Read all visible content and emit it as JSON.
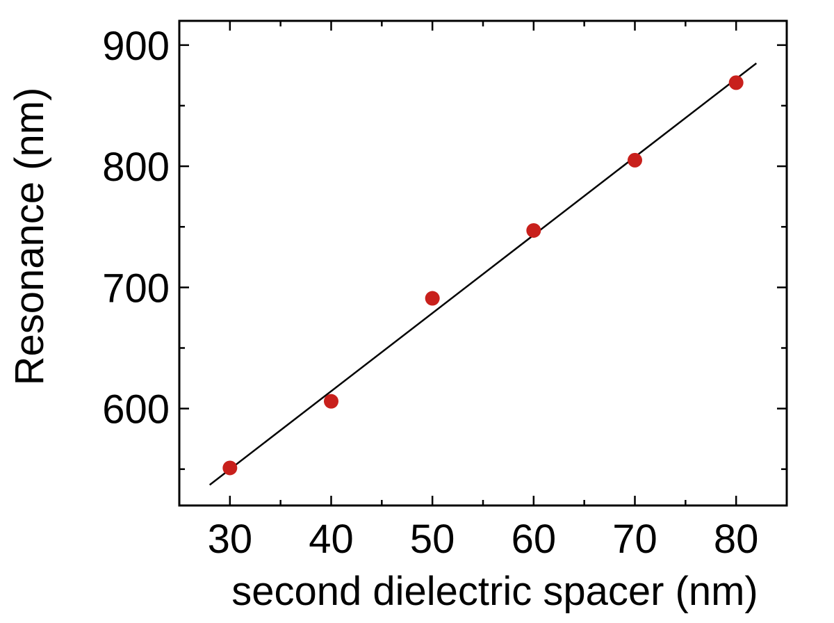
{
  "chart_data": {
    "type": "scatter",
    "title": "",
    "xlabel": "second dielectric spacer (nm)",
    "ylabel": "Resonance (nm)",
    "xlim": [
      25,
      85
    ],
    "ylim": [
      520,
      920
    ],
    "x_ticks": [
      30,
      40,
      50,
      60,
      70,
      80
    ],
    "y_ticks": [
      600,
      700,
      800,
      900
    ],
    "x_minor_ticks": [
      35,
      45,
      55,
      65,
      75
    ],
    "y_minor_ticks": [
      550,
      650,
      750,
      850
    ],
    "grid": false,
    "series": [
      {
        "type": "scatter",
        "x": [
          30,
          40,
          50,
          60,
          70,
          80
        ],
        "y": [
          551,
          606,
          691,
          747,
          805,
          869
        ],
        "color": "#c8201c"
      },
      {
        "type": "line",
        "x": [
          28,
          82
        ],
        "y": [
          537,
          885
        ],
        "color": "#000000"
      }
    ]
  }
}
